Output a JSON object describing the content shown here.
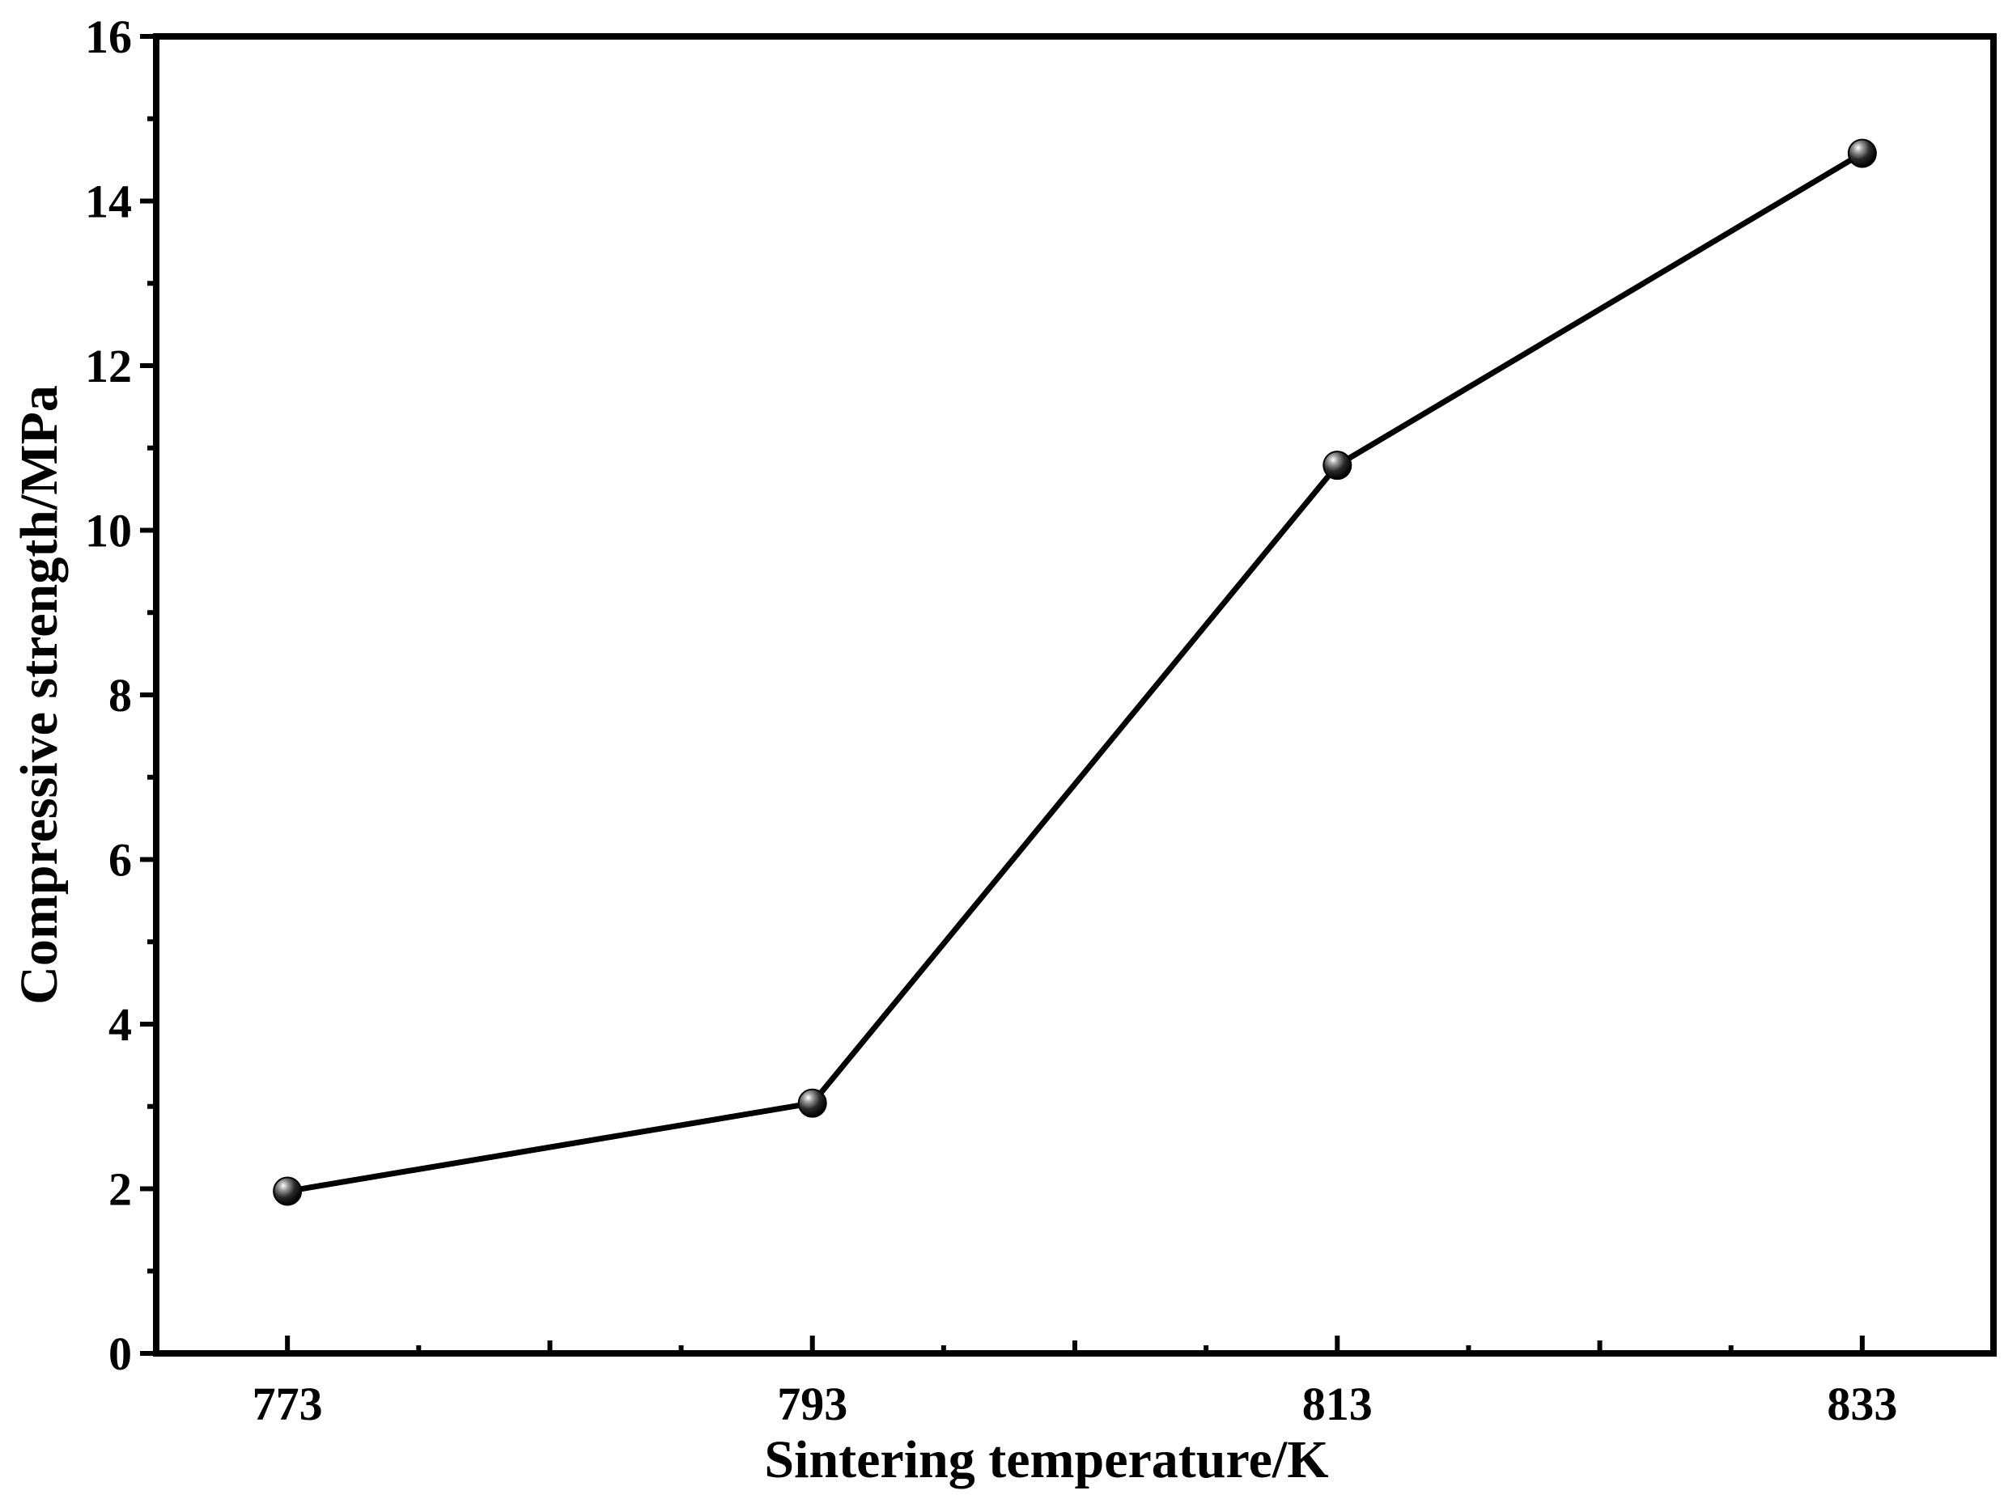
{
  "chart_data": {
    "type": "line",
    "title": "",
    "xlabel": "Sintering temperature/K",
    "ylabel": "Compressive strength/MPa",
    "x": [
      773,
      793,
      813,
      833
    ],
    "x_tick_labels": [
      "773",
      "793",
      "813",
      "833"
    ],
    "y_tick_labels": [
      "0",
      "2",
      "4",
      "6",
      "8",
      "10",
      "12",
      "14",
      "16"
    ],
    "xlim": [
      768,
      838
    ],
    "ylim": [
      0,
      16
    ],
    "series": [
      {
        "values": [
          1.97,
          3.04,
          10.79,
          14.58
        ],
        "color": "#000000",
        "marker": "sphere"
      }
    ],
    "grid": false,
    "legend": "none"
  }
}
